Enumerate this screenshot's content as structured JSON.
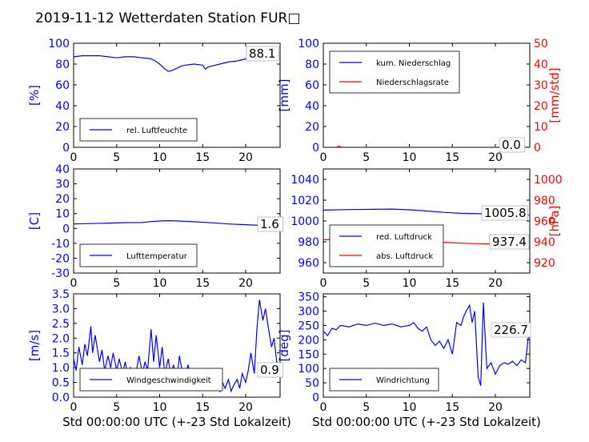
{
  "title": "2019-11-12 Wetterdaten Station FUR□",
  "xlabel": "Std 00:00:00 UTC (+-23 Std Lokalzeit)",
  "chart_data": [
    {
      "id": "humidity",
      "type": "line",
      "ylabel": "[%]",
      "ylim": [
        0,
        100
      ],
      "yticks": [
        0,
        20,
        40,
        60,
        80,
        100
      ],
      "xlim": [
        0,
        24
      ],
      "xticks": [
        0,
        5,
        10,
        15,
        20
      ],
      "legend": "lower-left",
      "annotation": "88.1",
      "series": [
        {
          "name": "rel. Luftfeuchte",
          "color": "#0000ff",
          "axis": "left",
          "x": [
            0,
            1,
            2,
            3,
            4,
            5,
            6,
            7,
            8,
            9,
            9.5,
            10,
            10.5,
            11,
            11.5,
            12,
            12.5,
            13,
            14,
            15,
            15.3,
            15.6,
            16,
            17,
            18,
            19,
            20,
            20.5,
            21,
            22,
            23,
            23.9
          ],
          "y": [
            87,
            88,
            88,
            88,
            87,
            86,
            87,
            87,
            86,
            85,
            83,
            80,
            76,
            73,
            74,
            76,
            78,
            79,
            80,
            79,
            75,
            77,
            78,
            80,
            82,
            83,
            85,
            86,
            87,
            86,
            87,
            88.1
          ]
        }
      ]
    },
    {
      "id": "precip",
      "type": "line",
      "ylabel": "[mm]",
      "ylim": [
        0,
        100
      ],
      "yticks": [
        0,
        20,
        40,
        60,
        80,
        100
      ],
      "y2label": "[mm/std]",
      "y2lim": [
        0,
        50
      ],
      "y2ticks": [
        0,
        10,
        20,
        30,
        40,
        50
      ],
      "xlim": [
        0,
        24
      ],
      "xticks": [
        0,
        5,
        10,
        15,
        20
      ],
      "legend": "upper-left",
      "annotation": "0.0",
      "series": [
        {
          "name": "kum. Niederschlag",
          "color": "#0000ff",
          "axis": "left",
          "x": [
            0,
            24
          ],
          "y": [
            0,
            0
          ]
        },
        {
          "name": "Niederschlagsrate",
          "color": "#ff0000",
          "axis": "right",
          "x": [
            0,
            1.5,
            1.8,
            2.1,
            2.5,
            24
          ],
          "y": [
            0,
            0,
            0.6,
            0,
            0,
            0
          ]
        }
      ]
    },
    {
      "id": "temperature",
      "type": "line",
      "ylabel": "[C]",
      "ylim": [
        -30,
        40
      ],
      "yticks": [
        -30,
        -20,
        -10,
        0,
        10,
        20,
        30,
        40
      ],
      "xlim": [
        0,
        24
      ],
      "xticks": [
        0,
        5,
        10,
        15,
        20
      ],
      "legend": "lower-left",
      "annotation": "1.6",
      "series": [
        {
          "name": "Lufttemperatur",
          "color": "#0000ff",
          "axis": "left",
          "x": [
            0,
            2,
            4,
            6,
            8,
            9,
            10,
            11,
            12,
            13,
            14,
            16,
            18,
            20,
            22,
            23.9
          ],
          "y": [
            3,
            3.3,
            3.6,
            3.9,
            4,
            4.6,
            5,
            5.2,
            5,
            4.8,
            4.5,
            3.8,
            3,
            2.5,
            2,
            1.6
          ]
        }
      ]
    },
    {
      "id": "pressure",
      "type": "line",
      "ylabel": "",
      "ylim": [
        950,
        1050
      ],
      "yticks": [
        960,
        980,
        1000,
        1020,
        1040
      ],
      "y2label": "[hPa]",
      "y2lim": [
        910,
        1010
      ],
      "y2ticks": [
        920,
        940,
        960,
        980,
        1000
      ],
      "xlim": [
        0,
        24
      ],
      "xticks": [
        0,
        5,
        10,
        15,
        20
      ],
      "legend": "lower-left",
      "annotations": [
        "1005.8",
        "937.4"
      ],
      "series": [
        {
          "name": "red. Luftdruck",
          "color": "#0000ff",
          "axis": "left",
          "x": [
            0,
            3,
            6,
            8,
            10,
            12,
            14,
            16,
            18,
            20,
            22,
            23.9
          ],
          "y": [
            1010.5,
            1011,
            1011.2,
            1011.5,
            1010.8,
            1009.6,
            1008.3,
            1007.4,
            1007,
            1006.6,
            1006.2,
            1005.8
          ]
        },
        {
          "name": "abs. Luftdruck",
          "color": "#ff0000",
          "axis": "right",
          "x": [
            0,
            3,
            6,
            8,
            10,
            12,
            14,
            16,
            18,
            20,
            22,
            23.9
          ],
          "y": [
            942,
            942.4,
            942.6,
            942.8,
            942,
            940.6,
            939.5,
            938.8,
            938.2,
            937.9,
            937.6,
            937.4
          ]
        }
      ]
    },
    {
      "id": "wind-speed",
      "type": "line",
      "ylabel": "[m/s]",
      "ylim": [
        0,
        3.5
      ],
      "yticks": [
        0.0,
        0.5,
        1.0,
        1.5,
        2.0,
        2.5,
        3.0,
        3.5
      ],
      "xlim": [
        0,
        24
      ],
      "xticks": [
        0,
        5,
        10,
        15,
        20
      ],
      "legend": "lower-left",
      "annotation": "0.9",
      "series": [
        {
          "name": "Windgeschwindigkeit",
          "color": "#0000ff",
          "axis": "left",
          "x": [
            0,
            0.3,
            0.6,
            1,
            1.3,
            1.6,
            2,
            2.2,
            2.5,
            3,
            3.3,
            3.6,
            4,
            4.3,
            4.6,
            5,
            5.3,
            5.7,
            6,
            6.3,
            6.6,
            7,
            7.3,
            7.6,
            8,
            8.3,
            8.6,
            9,
            9.3,
            9.6,
            10,
            10.3,
            10.6,
            11,
            11.3,
            11.6,
            12,
            12.3,
            12.6,
            13,
            13.3,
            13.6,
            14,
            14.3,
            14.6,
            15,
            15.3,
            15.6,
            16,
            16.3,
            16.6,
            17,
            17.3,
            17.6,
            18,
            18.3,
            18.6,
            19,
            19.3,
            19.6,
            20,
            20.3,
            20.6,
            21,
            21.3,
            21.6,
            22,
            22.3,
            22.6,
            23,
            23.3,
            23.6,
            23.9
          ],
          "y": [
            1.3,
            0.9,
            1.7,
            1.1,
            1.8,
            1.4,
            2.4,
            1.5,
            2.1,
            1.2,
            1.6,
            0.9,
            1.4,
            1.0,
            1.5,
            0.9,
            1.3,
            0.8,
            1.2,
            0.7,
            1.0,
            0.6,
            0.9,
            1.4,
            0.8,
            1.2,
            0.9,
            2.3,
            1.2,
            2.1,
            1.0,
            1.7,
            0.8,
            1.3,
            0.7,
            1.1,
            0.6,
            1.4,
            0.9,
            0.7,
            1.1,
            0.6,
            0.9,
            0.5,
            0.8,
            0.4,
            0.7,
            0.3,
            0.6,
            0.3,
            0.5,
            0.2,
            0.5,
            0.3,
            0.6,
            0.2,
            0.4,
            0.6,
            0.3,
            0.8,
            0.5,
            0.9,
            1.5,
            0.8,
            2.3,
            3.3,
            2.6,
            3.0,
            2.4,
            1.7,
            2.0,
            1.2,
            0.9
          ]
        }
      ]
    },
    {
      "id": "wind-direction",
      "type": "line",
      "ylabel": "[deg]",
      "ylim": [
        0,
        360
      ],
      "yticks": [
        0,
        50,
        100,
        150,
        200,
        250,
        300,
        350
      ],
      "xlim": [
        0,
        24
      ],
      "xticks": [
        0,
        5,
        10,
        15,
        20
      ],
      "legend": "lower-left",
      "annotation": "226.7",
      "series": [
        {
          "name": "Windrichtung",
          "color": "#0000ff",
          "axis": "left",
          "x": [
            0,
            0.5,
            1,
            1.5,
            2,
            3,
            4,
            5,
            6,
            7,
            8,
            9,
            10,
            10.5,
            11,
            11.5,
            12,
            12.5,
            13,
            13.5,
            14,
            14.5,
            15,
            15.5,
            16,
            16.3,
            16.6,
            17,
            17.3,
            17.6,
            18,
            18.3,
            18.6,
            19,
            19.5,
            20,
            20.5,
            21,
            21.5,
            22,
            22.5,
            23,
            23.5,
            23.9
          ],
          "y": [
            230,
            215,
            240,
            235,
            250,
            245,
            255,
            250,
            258,
            250,
            255,
            245,
            250,
            260,
            240,
            230,
            245,
            200,
            180,
            195,
            170,
            200,
            150,
            260,
            250,
            280,
            300,
            320,
            260,
            300,
            70,
            40,
            330,
            100,
            120,
            80,
            110,
            120,
            115,
            125,
            110,
            130,
            120,
            226.7
          ]
        }
      ]
    }
  ]
}
